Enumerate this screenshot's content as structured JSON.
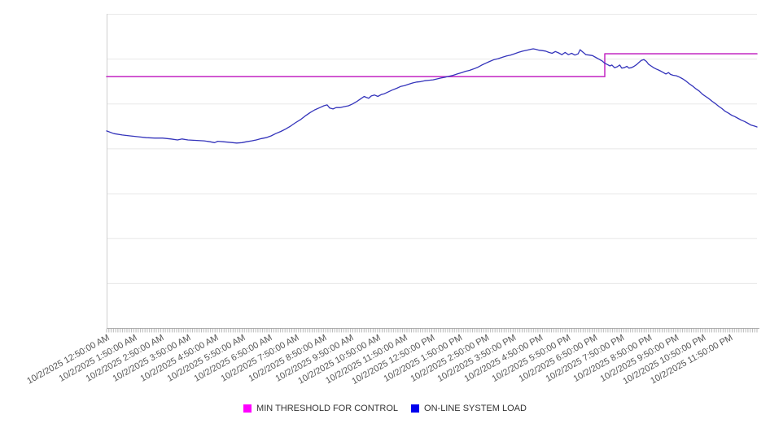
{
  "chart_data": {
    "type": "line",
    "title": "",
    "background_color": "#ffffff",
    "grid": "horizontal-only",
    "gridline_color": "#e8e8e8",
    "axis_line_color": "#aaaaaa",
    "x_axis": {
      "tick_label_color": "#555555",
      "tick_label_rotation_deg": -29,
      "minor_tick_count": 288,
      "minor_tick_color": "#b8b8b8",
      "tick_labels": [
        "10/2/2025 12:50:00 AM",
        "10/2/2025 1:50:00 AM",
        "10/2/2025 2:50:00 AM",
        "10/2/2025 3:50:00 AM",
        "10/2/2025 4:50:00 AM",
        "10/2/2025 5:50:00 AM",
        "10/2/2025 6:50:00 AM",
        "10/2/2025 7:50:00 AM",
        "10/2/2025 8:50:00 AM",
        "10/2/2025 9:50:00 AM",
        "10/2/2025 10:50:00 AM",
        "10/2/2025 11:50:00 AM",
        "10/2/2025 12:50:00 PM",
        "10/2/2025 1:50:00 PM",
        "10/2/2025 2:50:00 PM",
        "10/2/2025 3:50:00 PM",
        "10/2/2025 4:50:00 PM",
        "10/2/2025 5:50:00 PM",
        "10/2/2025 6:50:00 PM",
        "10/2/2025 7:50:00 PM",
        "10/2/2025 8:50:00 PM",
        "10/2/2025 9:50:00 PM",
        "10/2/2025 10:50:00 PM",
        "10/2/2025 11:50:00 PM"
      ]
    },
    "y_axis": {
      "ylim": [
        0,
        7
      ],
      "gridline_interval": 1,
      "tick_labels": []
    },
    "legend_position": "bottom-center",
    "series": [
      {
        "name": "MIN THRESHOLD FOR CONTROL",
        "type": "step",
        "color": "#c634c6",
        "legend_color": "#ff00ff",
        "stroke_width": 1.6,
        "points": [
          [
            0,
            5.6
          ],
          [
            0.766,
            5.6
          ],
          [
            0.766,
            6.11
          ],
          [
            1,
            6.11
          ]
        ]
      },
      {
        "name": "ON-LINE SYSTEM LOAD",
        "type": "line",
        "color": "#3434bb",
        "legend_color": "#0000ee",
        "stroke_width": 1.3,
        "points": [
          [
            0.0,
            4.39
          ],
          [
            0.011,
            4.33
          ],
          [
            0.024,
            4.3
          ],
          [
            0.036,
            4.28
          ],
          [
            0.049,
            4.26
          ],
          [
            0.061,
            4.24
          ],
          [
            0.074,
            4.23
          ],
          [
            0.086,
            4.23
          ],
          [
            0.099,
            4.21
          ],
          [
            0.109,
            4.19
          ],
          [
            0.116,
            4.21
          ],
          [
            0.125,
            4.19
          ],
          [
            0.136,
            4.18
          ],
          [
            0.15,
            4.17
          ],
          [
            0.159,
            4.15
          ],
          [
            0.166,
            4.13
          ],
          [
            0.171,
            4.16
          ],
          [
            0.179,
            4.15
          ],
          [
            0.186,
            4.14
          ],
          [
            0.194,
            4.13
          ],
          [
            0.2,
            4.12
          ],
          [
            0.208,
            4.13
          ],
          [
            0.215,
            4.15
          ],
          [
            0.223,
            4.17
          ],
          [
            0.23,
            4.19
          ],
          [
            0.238,
            4.22
          ],
          [
            0.245,
            4.24
          ],
          [
            0.253,
            4.28
          ],
          [
            0.26,
            4.33
          ],
          [
            0.268,
            4.38
          ],
          [
            0.275,
            4.43
          ],
          [
            0.283,
            4.5
          ],
          [
            0.29,
            4.57
          ],
          [
            0.298,
            4.64
          ],
          [
            0.305,
            4.72
          ],
          [
            0.313,
            4.8
          ],
          [
            0.32,
            4.86
          ],
          [
            0.328,
            4.91
          ],
          [
            0.334,
            4.95
          ],
          [
            0.339,
            4.97
          ],
          [
            0.343,
            4.9
          ],
          [
            0.348,
            4.88
          ],
          [
            0.353,
            4.91
          ],
          [
            0.359,
            4.91
          ],
          [
            0.365,
            4.93
          ],
          [
            0.372,
            4.95
          ],
          [
            0.378,
            4.99
          ],
          [
            0.384,
            5.04
          ],
          [
            0.39,
            5.1
          ],
          [
            0.396,
            5.16
          ],
          [
            0.399,
            5.14
          ],
          [
            0.403,
            5.12
          ],
          [
            0.407,
            5.17
          ],
          [
            0.412,
            5.19
          ],
          [
            0.417,
            5.16
          ],
          [
            0.422,
            5.2
          ],
          [
            0.427,
            5.22
          ],
          [
            0.433,
            5.26
          ],
          [
            0.439,
            5.3
          ],
          [
            0.446,
            5.34
          ],
          [
            0.452,
            5.38
          ],
          [
            0.458,
            5.4
          ],
          [
            0.464,
            5.43
          ],
          [
            0.471,
            5.46
          ],
          [
            0.477,
            5.48
          ],
          [
            0.483,
            5.49
          ],
          [
            0.489,
            5.51
          ],
          [
            0.496,
            5.52
          ],
          [
            0.502,
            5.53
          ],
          [
            0.508,
            5.55
          ],
          [
            0.514,
            5.57
          ],
          [
            0.521,
            5.59
          ],
          [
            0.527,
            5.61
          ],
          [
            0.533,
            5.63
          ],
          [
            0.539,
            5.66
          ],
          [
            0.546,
            5.69
          ],
          [
            0.552,
            5.72
          ],
          [
            0.558,
            5.74
          ],
          [
            0.564,
            5.77
          ],
          [
            0.571,
            5.81
          ],
          [
            0.577,
            5.86
          ],
          [
            0.583,
            5.9
          ],
          [
            0.589,
            5.94
          ],
          [
            0.596,
            5.98
          ],
          [
            0.602,
            6.0
          ],
          [
            0.608,
            6.03
          ],
          [
            0.615,
            6.06
          ],
          [
            0.621,
            6.08
          ],
          [
            0.627,
            6.11
          ],
          [
            0.633,
            6.14
          ],
          [
            0.64,
            6.17
          ],
          [
            0.646,
            6.19
          ],
          [
            0.652,
            6.21
          ],
          [
            0.656,
            6.22
          ],
          [
            0.66,
            6.21
          ],
          [
            0.665,
            6.19
          ],
          [
            0.67,
            6.18
          ],
          [
            0.675,
            6.17
          ],
          [
            0.68,
            6.14
          ],
          [
            0.685,
            6.12
          ],
          [
            0.69,
            6.16
          ],
          [
            0.695,
            6.13
          ],
          [
            0.7,
            6.09
          ],
          [
            0.705,
            6.14
          ],
          [
            0.71,
            6.09
          ],
          [
            0.715,
            6.12
          ],
          [
            0.72,
            6.08
          ],
          [
            0.725,
            6.11
          ],
          [
            0.728,
            6.2
          ],
          [
            0.732,
            6.15
          ],
          [
            0.737,
            6.09
          ],
          [
            0.742,
            6.08
          ],
          [
            0.747,
            6.07
          ],
          [
            0.752,
            6.03
          ],
          [
            0.757,
            5.99
          ],
          [
            0.762,
            5.95
          ],
          [
            0.766,
            5.9
          ],
          [
            0.77,
            5.87
          ],
          [
            0.774,
            5.84
          ],
          [
            0.777,
            5.86
          ],
          [
            0.781,
            5.8
          ],
          [
            0.785,
            5.82
          ],
          [
            0.789,
            5.86
          ],
          [
            0.792,
            5.79
          ],
          [
            0.796,
            5.8
          ],
          [
            0.8,
            5.83
          ],
          [
            0.803,
            5.79
          ],
          [
            0.807,
            5.8
          ],
          [
            0.811,
            5.83
          ],
          [
            0.815,
            5.87
          ],
          [
            0.818,
            5.91
          ],
          [
            0.822,
            5.96
          ],
          [
            0.826,
            5.98
          ],
          [
            0.83,
            5.94
          ],
          [
            0.833,
            5.88
          ],
          [
            0.837,
            5.84
          ],
          [
            0.841,
            5.8
          ],
          [
            0.845,
            5.77
          ],
          [
            0.85,
            5.74
          ],
          [
            0.855,
            5.7
          ],
          [
            0.86,
            5.66
          ],
          [
            0.864,
            5.69
          ],
          [
            0.867,
            5.65
          ],
          [
            0.871,
            5.63
          ],
          [
            0.876,
            5.62
          ],
          [
            0.881,
            5.59
          ],
          [
            0.886,
            5.55
          ],
          [
            0.891,
            5.5
          ],
          [
            0.896,
            5.44
          ],
          [
            0.901,
            5.39
          ],
          [
            0.906,
            5.33
          ],
          [
            0.911,
            5.28
          ],
          [
            0.916,
            5.21
          ],
          [
            0.921,
            5.16
          ],
          [
            0.926,
            5.11
          ],
          [
            0.931,
            5.05
          ],
          [
            0.936,
            5.0
          ],
          [
            0.941,
            4.94
          ],
          [
            0.946,
            4.89
          ],
          [
            0.951,
            4.83
          ],
          [
            0.956,
            4.79
          ],
          [
            0.961,
            4.74
          ],
          [
            0.966,
            4.71
          ],
          [
            0.971,
            4.67
          ],
          [
            0.976,
            4.63
          ],
          [
            0.981,
            4.6
          ],
          [
            0.986,
            4.56
          ],
          [
            0.991,
            4.52
          ],
          [
            0.996,
            4.5
          ],
          [
            1.0,
            4.48
          ]
        ]
      }
    ]
  }
}
